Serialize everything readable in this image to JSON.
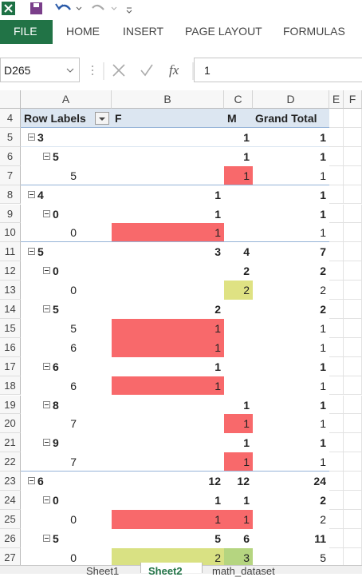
{
  "ribbon": {
    "tabs": [
      "FILE",
      "HOME",
      "INSERT",
      "PAGE LAYOUT",
      "FORMULAS"
    ]
  },
  "formula_bar": {
    "name_box": "D265",
    "fx_label": "fx",
    "formula": "1"
  },
  "columns": [
    "A",
    "B",
    "C",
    "D",
    "E",
    "F"
  ],
  "row_numbers": [
    "4",
    "5",
    "6",
    "7",
    "8",
    "9",
    "10",
    "11",
    "12",
    "13",
    "14",
    "15",
    "16",
    "17",
    "18",
    "19",
    "20",
    "21",
    "22",
    "23",
    "24",
    "25",
    "26",
    "27"
  ],
  "pivot": {
    "header": {
      "row_labels": "Row Labels",
      "F": "F",
      "M": "M",
      "total": "Grand Total"
    },
    "groups": [
      {
        "label": "3",
        "F": null,
        "M": 1,
        "total": 1,
        "children": [
          {
            "label": "5",
            "F": null,
            "M": 1,
            "total": 1,
            "children": [
              {
                "label": "5",
                "F": null,
                "M": 1,
                "total": 1,
                "M_fill": "#f8696b"
              }
            ]
          }
        ]
      },
      {
        "label": "4",
        "F": 1,
        "M": null,
        "total": 1,
        "children": [
          {
            "label": "0",
            "F": 1,
            "M": null,
            "total": 1,
            "children": [
              {
                "label": "0",
                "F": 1,
                "M": null,
                "total": 1,
                "F_fill": "#f8696b"
              }
            ]
          }
        ]
      },
      {
        "label": "5",
        "F": 3,
        "M": 4,
        "total": 7,
        "children": [
          {
            "label": "0",
            "F": null,
            "M": 2,
            "total": 2,
            "children": [
              {
                "label": "0",
                "F": null,
                "M": 2,
                "total": 2,
                "M_fill": "#dfe283"
              }
            ]
          },
          {
            "label": "5",
            "F": 2,
            "M": null,
            "total": 2,
            "children": [
              {
                "label": "5",
                "F": 1,
                "M": null,
                "total": 1,
                "F_fill": "#f8696b"
              },
              {
                "label": "6",
                "F": 1,
                "M": null,
                "total": 1,
                "F_fill": "#f8696b"
              }
            ]
          },
          {
            "label": "6",
            "F": 1,
            "M": null,
            "total": 1,
            "children": [
              {
                "label": "6",
                "F": 1,
                "M": null,
                "total": 1,
                "F_fill": "#f8696b"
              }
            ]
          },
          {
            "label": "8",
            "F": null,
            "M": 1,
            "total": 1,
            "children": [
              {
                "label": "7",
                "F": null,
                "M": 1,
                "total": 1,
                "M_fill": "#f8696b"
              }
            ]
          },
          {
            "label": "9",
            "F": null,
            "M": 1,
            "total": 1,
            "children": [
              {
                "label": "7",
                "F": null,
                "M": 1,
                "total": 1,
                "M_fill": "#f8696b"
              }
            ]
          }
        ]
      },
      {
        "label": "6",
        "F": 12,
        "M": 12,
        "total": 24,
        "children": [
          {
            "label": "0",
            "F": 1,
            "M": 1,
            "total": 2,
            "children": [
              {
                "label": "0",
                "F": 1,
                "M": 1,
                "total": 2,
                "F_fill": "#f8696b",
                "M_fill": "#f8696b"
              }
            ]
          },
          {
            "label": "5",
            "F": 5,
            "M": 6,
            "total": 11,
            "children": [
              {
                "label": "0",
                "F": 2,
                "M": 3,
                "total": 5,
                "F_fill": "#d9e183",
                "M_fill": "#b5d580"
              }
            ]
          }
        ]
      }
    ]
  },
  "sheet_tabs": [
    "Sheet1",
    "Sheet2",
    "math_dataset"
  ]
}
